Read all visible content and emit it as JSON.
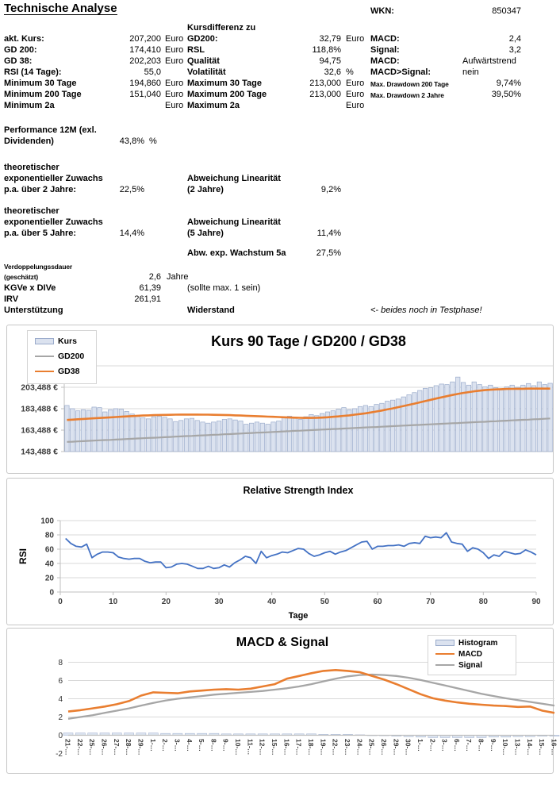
{
  "page": {
    "title": "Technische Analyse",
    "wkn_label": "WKN:",
    "wkn_value": "850347"
  },
  "summary": {
    "col2_header": "Kursdifferenz zu",
    "rows": [
      {
        "l1": "akt. Kurs:",
        "v1": "207,200",
        "u1": "Euro",
        "l2": "GD200:",
        "v2": "32,79",
        "u2": "Euro",
        "l3": "MACD:",
        "v3": "2,4"
      },
      {
        "l1": "GD 200:",
        "v1": "174,410",
        "u1": "Euro",
        "l2": "RSL",
        "v2": "118,8%",
        "u2": "",
        "l3": "Signal:",
        "v3": "3,2"
      },
      {
        "l1": "GD 38:",
        "v1": "202,203",
        "u1": "Euro",
        "l2": "Qualität",
        "v2": "94,75",
        "u2": "",
        "l3": "MACD:",
        "v3": "Aufwärtstrend"
      },
      {
        "l1": "RSI (14 Tage):",
        "v1": "55,0",
        "u1": "",
        "l2": "Volatilität",
        "v2": "32,6",
        "u2": "%",
        "l3": "MACD>Signal:",
        "v3": "nein"
      },
      {
        "l1": "Minimum 30 Tage",
        "v1": "194,860",
        "u1": "Euro",
        "l2": "Maximum 30 Tage",
        "v2": "213,000",
        "u2": "Euro",
        "l3": "Max. Drawdown 200 Tage",
        "v3": "9,74%"
      },
      {
        "l1": "Minimum 200 Tage",
        "v1": "151,040",
        "u1": "Euro",
        "l2": "Maximum 200 Tage",
        "v2": "213,000",
        "u2": "Euro",
        "l3": "Max. Drawdown 2 Jahre",
        "v3": "39,50%"
      },
      {
        "l1": "Minimum 2a",
        "v1": "",
        "u1": "Euro",
        "l2": "Maximum 2a",
        "v2": "",
        "u2": "Euro",
        "l3": "",
        "v3": ""
      }
    ]
  },
  "performance": {
    "label_line1": "Performance 12M (exl.",
    "label_line2": "Dividenden)",
    "value": "43,8%",
    "unit": "%"
  },
  "growth2": {
    "label_line1": "theoretischer",
    "label_line2": "exponentieller Zuwachs",
    "label_line3": "p.a. über 2 Jahre:",
    "value": "22,5%",
    "label2_line1": "Abweichung Linearität",
    "label2_line2": "(2 Jahre)",
    "value2": "9,2%"
  },
  "growth5": {
    "label_line1": "theoretischer",
    "label_line2": "exponentieller Zuwachs",
    "label_line3": "p.a. über 5 Jahre:",
    "value": "14,4%",
    "label2_line1": "Abweichung Linearität",
    "label2_line2": "(5 Jahre)",
    "value2": "11,4%"
  },
  "abw5a": {
    "label": "Abw. exp. Wachstum 5a",
    "value": "27,5%"
  },
  "verdopp": {
    "label_line1": "Verdoppelungssdauer",
    "label_line2": "(geschätzt)",
    "value": "2,6",
    "unit": "Jahre"
  },
  "kgve": {
    "label": "KGVe x DIVe",
    "value": "61,39",
    "note": "(sollte max. 1 sein)"
  },
  "irv": {
    "label": "IRV",
    "value": "261,91"
  },
  "support": {
    "label": "Unterstützung",
    "label2": "Widerstand",
    "note": "<- beides noch in Testphase!"
  },
  "chart_data": [
    {
      "type": "bar",
      "title": "Kurs 90 Tage / GD200 / GD38",
      "legend": [
        "Kurs",
        "GD200",
        "GD38"
      ],
      "legend_position": "top-left",
      "ylim": [
        143.488,
        223.488
      ],
      "yticks": [
        143.488,
        163.488,
        183.488,
        203.488
      ],
      "ylabels": [
        "143,488 €",
        "163,488 €",
        "183,488 €",
        "203,488 €"
      ],
      "grid": true,
      "bar_fill": "#dbe2ef",
      "bar_stroke": "#9aabcb",
      "bars_name": "Kurs",
      "bars": [
        186.5,
        183.5,
        181.5,
        182.5,
        182.0,
        185.0,
        184.5,
        180.5,
        182.5,
        183.5,
        183.0,
        181.0,
        178.5,
        176.5,
        175.0,
        174.0,
        176.0,
        176.5,
        175.5,
        174.0,
        171.5,
        172.5,
        174.0,
        174.5,
        172.5,
        171.0,
        170.0,
        171.0,
        172.0,
        173.5,
        174.0,
        173.0,
        172.0,
        169.0,
        170.0,
        171.0,
        170.0,
        169.0,
        171.0,
        172.0,
        175.0,
        176.5,
        175.5,
        173.5,
        176.0,
        178.0,
        177.0,
        179.0,
        180.5,
        181.5,
        183.0,
        184.5,
        182.5,
        183.5,
        185.5,
        186.5,
        185.5,
        187.5,
        188.5,
        190.5,
        191.5,
        192.5,
        194.5,
        196.5,
        198.5,
        200.5,
        202.5,
        203.0,
        205.0,
        206.5,
        206.0,
        208.5,
        213.0,
        208.0,
        205.5,
        208.5,
        206.0,
        204.0,
        205.5,
        203.0,
        201.0,
        204.0,
        205.5,
        203.5,
        205.5,
        207.0,
        205.0,
        208.5,
        206.0,
        207.2
      ],
      "series": [
        {
          "name": "GD200",
          "color": "#a6a6a6",
          "values": [
            152.5,
            152.7,
            153.0,
            153.2,
            153.5,
            153.7,
            154.0,
            154.2,
            154.4,
            154.7,
            154.9,
            155.2,
            155.4,
            155.7,
            155.9,
            156.2,
            156.4,
            156.6,
            156.9,
            157.1,
            157.4,
            157.6,
            157.9,
            158.1,
            158.4,
            158.6,
            158.8,
            159.1,
            159.3,
            159.6,
            159.8,
            160.1,
            160.3,
            160.6,
            160.8,
            161.1,
            161.3,
            161.5,
            161.8,
            162.0,
            162.3,
            162.5,
            162.8,
            163.0,
            163.3,
            163.5,
            163.8,
            164.0,
            164.2,
            164.5,
            164.7,
            165.0,
            165.2,
            165.5,
            165.7,
            166.0,
            166.2,
            166.4,
            166.7,
            166.9,
            167.2,
            167.4,
            167.7,
            167.9,
            168.2,
            168.4,
            168.7,
            168.9,
            169.1,
            169.4,
            169.6,
            169.9,
            170.1,
            170.4,
            170.6,
            170.9,
            171.1,
            171.3,
            171.6,
            171.8,
            172.1,
            172.3,
            172.6,
            172.8,
            173.1,
            173.3,
            173.6,
            173.8,
            174.1,
            174.4
          ]
        },
        {
          "name": "GD38",
          "color": "#e97e30",
          "values": [
            173.0,
            173.3,
            173.6,
            173.9,
            174.2,
            174.5,
            174.8,
            175.1,
            175.4,
            175.7,
            176.0,
            176.3,
            176.6,
            176.9,
            177.1,
            177.3,
            177.5,
            177.6,
            177.7,
            177.8,
            177.9,
            178.0,
            178.0,
            178.0,
            178.0,
            177.9,
            177.9,
            177.8,
            177.7,
            177.6,
            177.5,
            177.3,
            177.1,
            176.9,
            176.7,
            176.5,
            176.3,
            176.1,
            175.9,
            175.7,
            175.5,
            175.3,
            175.1,
            175.0,
            174.9,
            174.9,
            175.0,
            175.2,
            175.5,
            175.9,
            176.3,
            176.8,
            177.3,
            177.9,
            178.5,
            179.2,
            180.0,
            180.9,
            181.8,
            182.8,
            183.8,
            184.9,
            186.0,
            187.1,
            188.2,
            189.4,
            190.6,
            191.8,
            193.0,
            194.1,
            195.2,
            196.3,
            197.3,
            198.2,
            199.0,
            199.7,
            200.3,
            200.8,
            201.2,
            201.5,
            201.7,
            201.9,
            202.0,
            202.1,
            202.1,
            202.2,
            202.2,
            202.2,
            202.2,
            202.2
          ]
        }
      ]
    },
    {
      "type": "line",
      "title": "Relative Strength Index",
      "xlabel": "Tage",
      "ylabel": "RSI",
      "xlim": [
        0,
        90
      ],
      "ylim": [
        0,
        100
      ],
      "xticks": [
        0,
        10,
        20,
        30,
        40,
        50,
        60,
        70,
        80,
        90
      ],
      "yticks": [
        0,
        20,
        40,
        60,
        80,
        100
      ],
      "grid": true,
      "series": [
        {
          "name": "RSI",
          "color": "#4472c4",
          "values": [
            75,
            68,
            64,
            63,
            67,
            48,
            53,
            56,
            56,
            55,
            49,
            47,
            46,
            47,
            47,
            43,
            41,
            42,
            42,
            34,
            35,
            39,
            40,
            39,
            36,
            33,
            33,
            36,
            33,
            34,
            38,
            35,
            41,
            45,
            50,
            48,
            40,
            57,
            48,
            51,
            53,
            56,
            55,
            58,
            61,
            60,
            54,
            50,
            52,
            55,
            57,
            53,
            56,
            58,
            62,
            66,
            70,
            71,
            60,
            64,
            64,
            65,
            65,
            66,
            64,
            68,
            69,
            68,
            78,
            76,
            77,
            76,
            83,
            70,
            68,
            67,
            57,
            62,
            60,
            55,
            47,
            52,
            50,
            57,
            55,
            53,
            54,
            59,
            56,
            52
          ]
        }
      ]
    },
    {
      "type": "line+bar",
      "title": "MACD & Signal",
      "legend": [
        "Histogram",
        "MACD",
        "Signal"
      ],
      "legend_position": "top-right",
      "ylim": [
        -2,
        8
      ],
      "yticks": [
        -2,
        0,
        2,
        4,
        6,
        8
      ],
      "grid": true,
      "hist_fill": "#dce4f1",
      "hist_stroke": "#a9b7d3",
      "categories": [
        "21-…",
        "22-…",
        "25-…",
        "26-…",
        "27-…",
        "28-…",
        "29-…",
        "1-…",
        "2-…",
        "3-…",
        "4-…",
        "5-…",
        "8-…",
        "9-…",
        "10-…",
        "11-…",
        "12-…",
        "15-…",
        "16-…",
        "17-…",
        "18-…",
        "19-…",
        "22-…",
        "23-…",
        "24-…",
        "25-…",
        "26-…",
        "29-…",
        "30-…",
        "1-…",
        "2-…",
        "3-…",
        "6-…",
        "7-…",
        "8-…",
        "9-…",
        "10-…",
        "13-…",
        "14-…",
        "15-…",
        "16-…"
      ],
      "histogram": [
        0.25,
        0.25,
        0.25,
        0.25,
        0.25,
        0.25,
        0.25,
        0.25,
        0.2,
        0.2,
        0.2,
        0.2,
        0.2,
        0.15,
        0.15,
        0.15,
        0.15,
        0.15,
        0.15,
        0.15,
        0.15,
        0.1,
        0.1,
        0.1,
        0.05,
        0.0,
        -0.05,
        -0.1,
        -0.15,
        -0.2,
        -0.25,
        -0.25,
        -0.25,
        -0.25,
        -0.25,
        -0.2,
        -0.2,
        -0.15,
        -0.15,
        -0.1,
        -0.1
      ],
      "series": [
        {
          "name": "MACD",
          "color": "#e97e30",
          "values": [
            2.6,
            2.75,
            2.95,
            3.15,
            3.4,
            3.75,
            4.35,
            4.7,
            4.65,
            4.6,
            4.8,
            4.9,
            5.0,
            5.05,
            5.0,
            5.1,
            5.35,
            5.6,
            6.2,
            6.5,
            6.8,
            7.05,
            7.15,
            7.05,
            6.9,
            6.5,
            6.1,
            5.6,
            5.05,
            4.5,
            4.05,
            3.8,
            3.6,
            3.45,
            3.35,
            3.25,
            3.2,
            3.1,
            3.15,
            2.7,
            2.45
          ]
        },
        {
          "name": "Signal",
          "color": "#a6a6a6",
          "values": [
            1.8,
            2.0,
            2.2,
            2.45,
            2.7,
            2.95,
            3.25,
            3.55,
            3.8,
            4.0,
            4.15,
            4.3,
            4.45,
            4.55,
            4.65,
            4.75,
            4.85,
            5.0,
            5.15,
            5.35,
            5.6,
            5.9,
            6.2,
            6.45,
            6.6,
            6.65,
            6.6,
            6.5,
            6.3,
            6.05,
            5.75,
            5.45,
            5.15,
            4.85,
            4.55,
            4.3,
            4.05,
            3.85,
            3.65,
            3.45,
            3.25
          ]
        }
      ]
    }
  ]
}
